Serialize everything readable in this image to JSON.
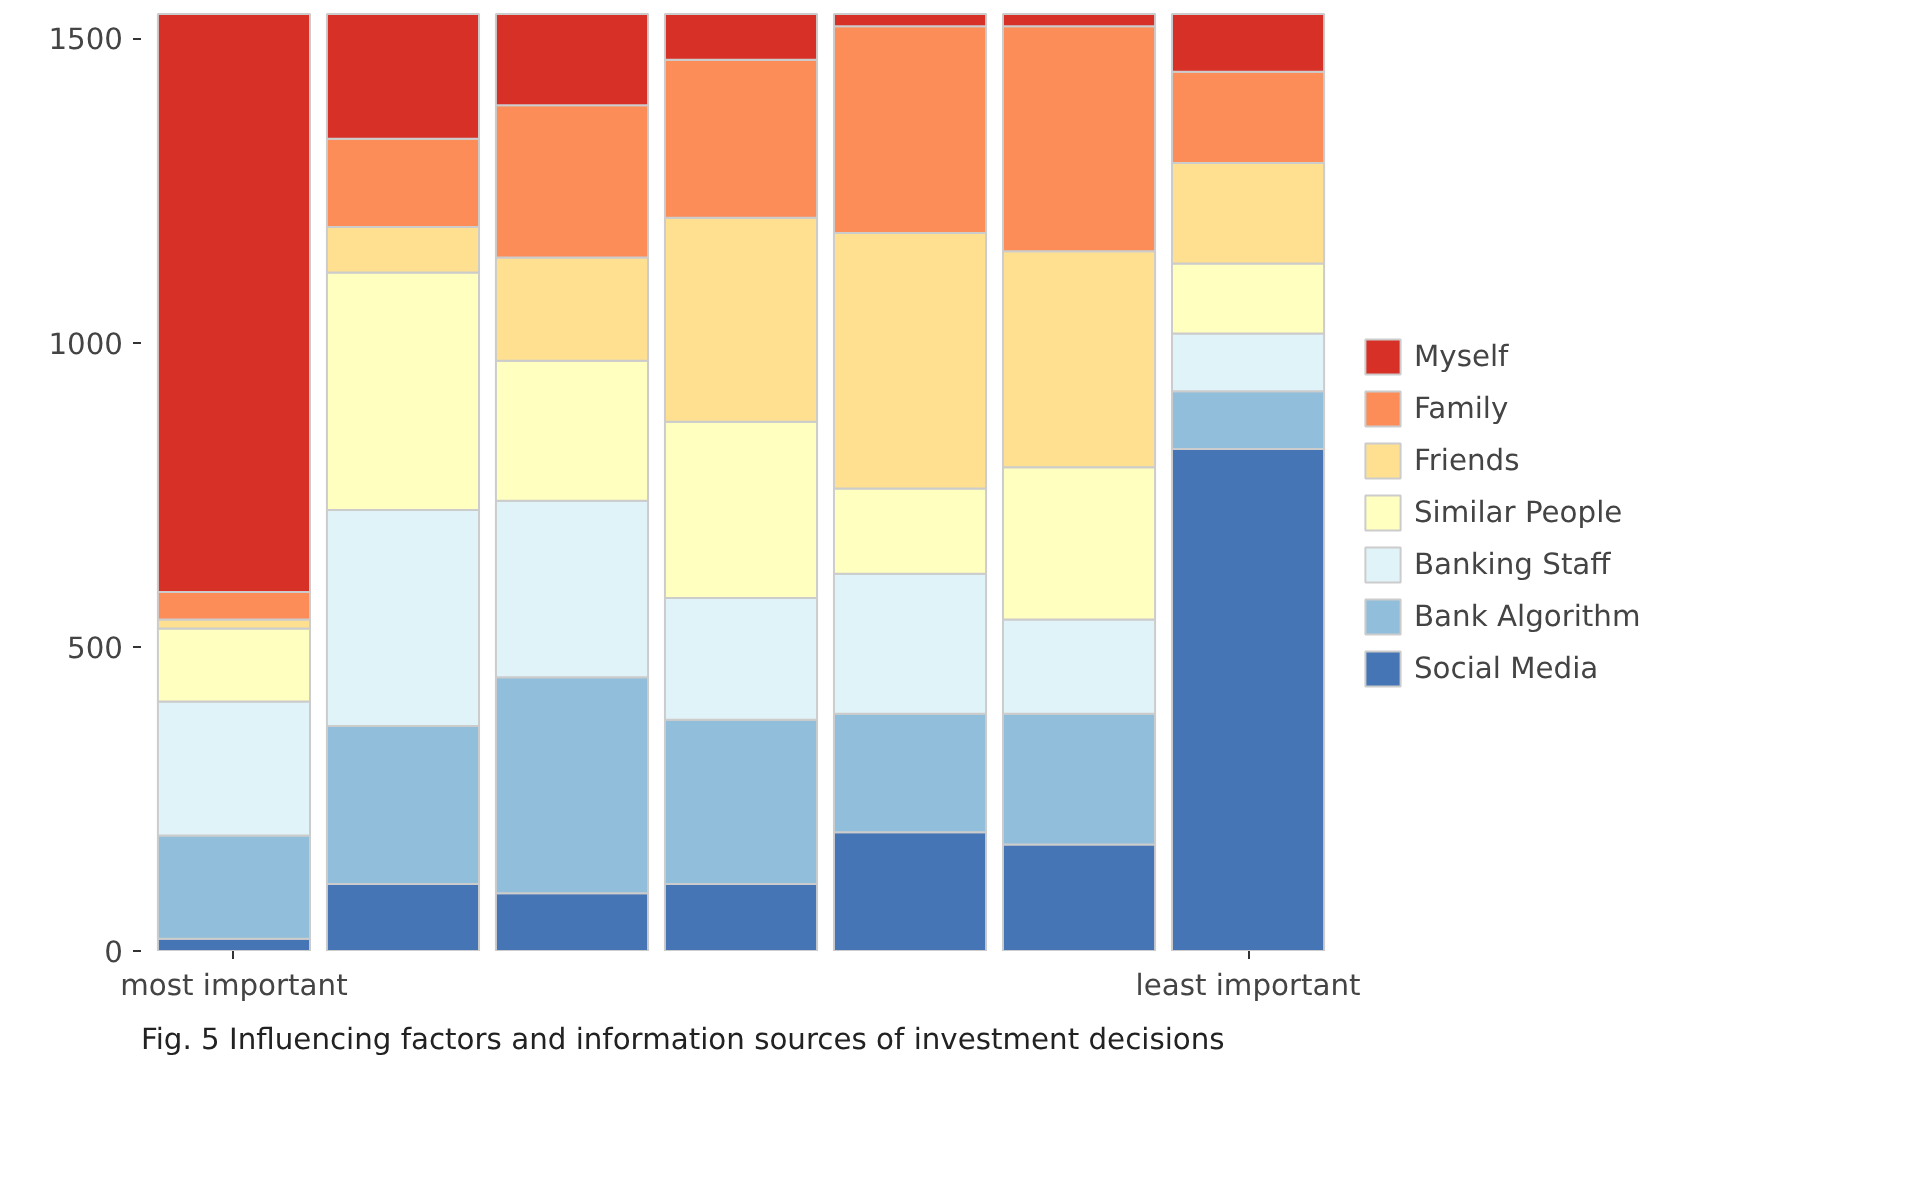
{
  "chart_data": {
    "type": "bar",
    "stacked": true,
    "categories": [
      "most important",
      null,
      null,
      null,
      null,
      null,
      "least important"
    ],
    "series": [
      {
        "name": "Social Media",
        "color": "#4575b4",
        "values": [
          20,
          110,
          95,
          110,
          195,
          175,
          825
        ]
      },
      {
        "name": "Bank Algorithm",
        "color": "#91bfdb",
        "values": [
          170,
          260,
          355,
          270,
          195,
          215,
          95
        ]
      },
      {
        "name": "Banking Staff",
        "color": "#e0f3f8",
        "values": [
          220,
          355,
          290,
          200,
          230,
          155,
          95
        ]
      },
      {
        "name": "Similar People",
        "color": "#ffffbf",
        "values": [
          120,
          390,
          230,
          290,
          140,
          250,
          115
        ]
      },
      {
        "name": "Friends",
        "color": "#fee090",
        "values": [
          15,
          75,
          170,
          335,
          420,
          355,
          165
        ]
      },
      {
        "name": "Family",
        "color": "#fc8d59",
        "values": [
          45,
          145,
          250,
          260,
          340,
          370,
          150
        ]
      },
      {
        "name": "Myself",
        "color": "#d73027",
        "values": [
          950,
          205,
          150,
          75,
          20,
          20,
          95
        ]
      }
    ],
    "ylim": [
      0,
      1545
    ],
    "yticks": [
      0,
      500,
      1000,
      1500
    ],
    "grid": false,
    "legend": "right",
    "annotations": [
      "Fig. 5 Influencing factors and information sources of investment decisions"
    ]
  }
}
